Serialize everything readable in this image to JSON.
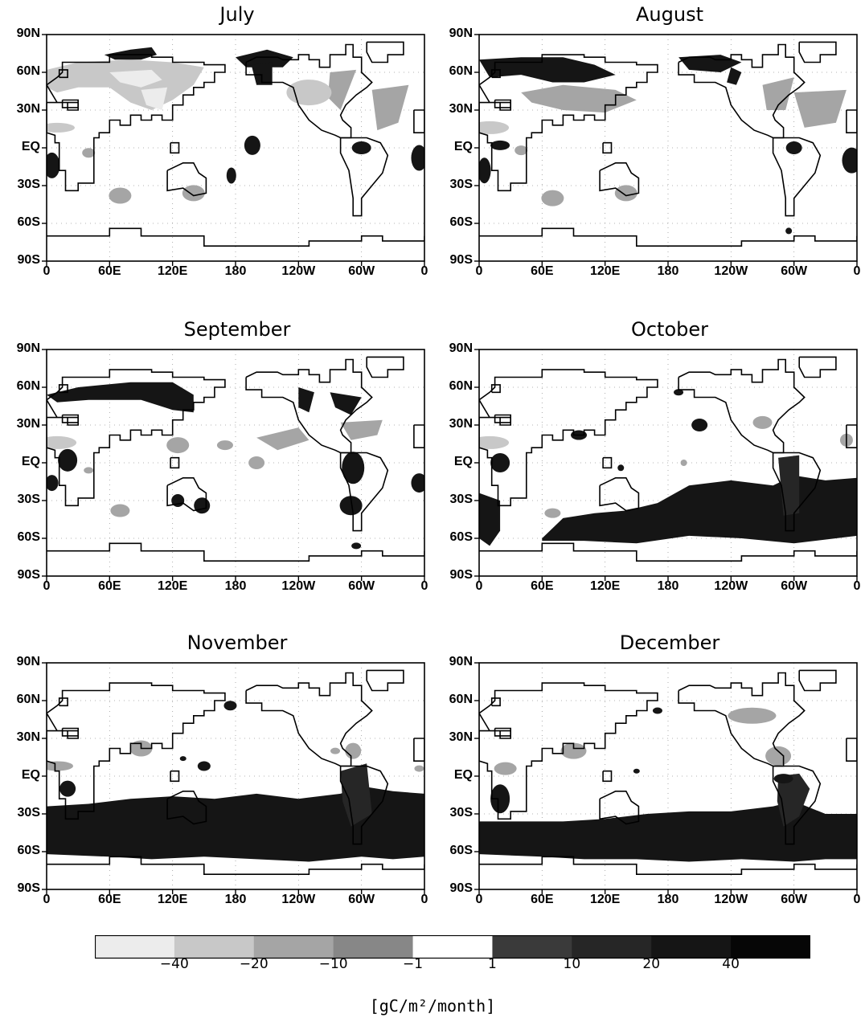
{
  "panels": [
    {
      "title": "July"
    },
    {
      "title": "August"
    },
    {
      "title": "September"
    },
    {
      "title": "October"
    },
    {
      "title": "November"
    },
    {
      "title": "December"
    }
  ],
  "y_ticks": [
    "90N",
    "60N",
    "30N",
    "EQ",
    "30S",
    "60S",
    "90S"
  ],
  "x_ticks": [
    "0",
    "60E",
    "120E",
    "180",
    "120W",
    "60W",
    "0"
  ],
  "colorbar": {
    "labels": [
      "−40",
      "−20",
      "−10",
      "−1",
      "1",
      "10",
      "20",
      "40"
    ],
    "colors": [
      "#ececec",
      "#c8c8c8",
      "#a5a5a5",
      "#878787",
      "#ffffff",
      "#3a3a3a",
      "#262626",
      "#151515",
      "#060606"
    ],
    "units": "[gC/m²/month]"
  }
}
